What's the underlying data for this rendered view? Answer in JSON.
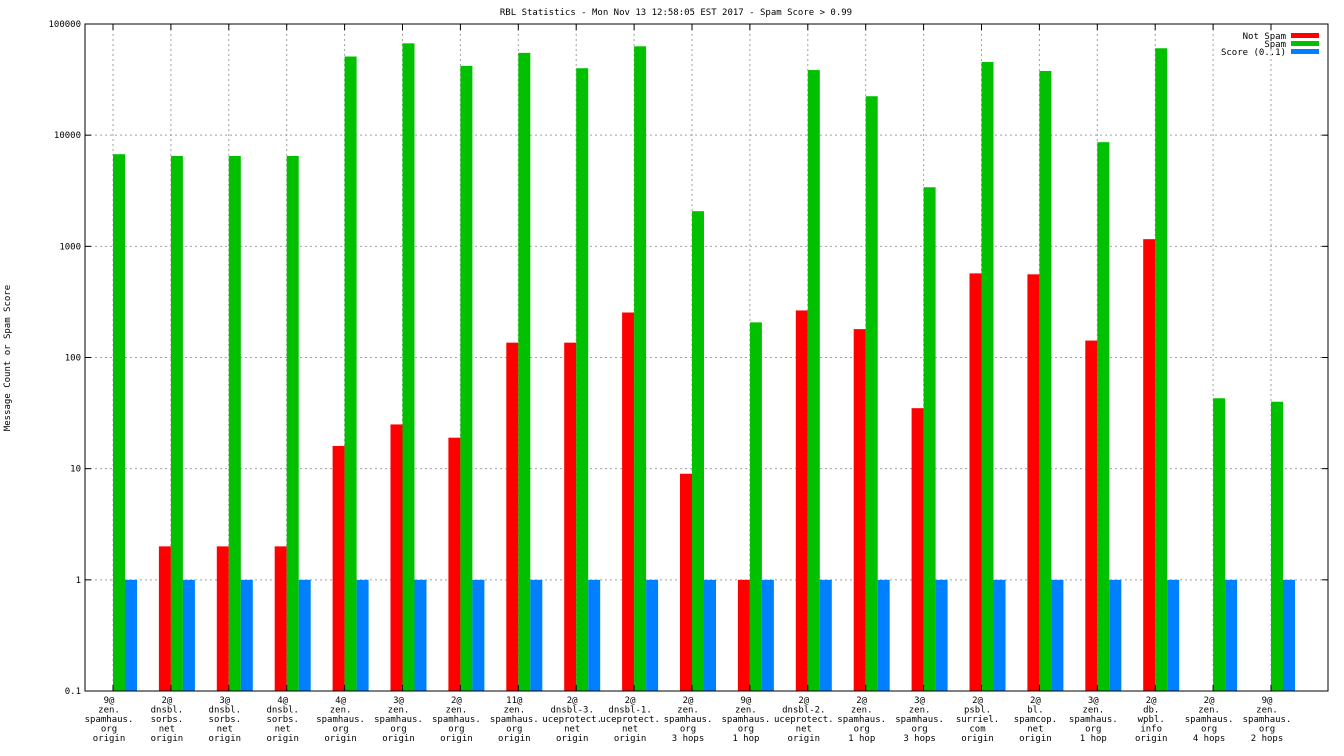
{
  "chart_data": {
    "type": "bar",
    "title": "RBL Statistics - Mon Nov 13 12:58:05 EST 2017 - Spam Score > 0.99",
    "xlabel": "",
    "ylabel": "Message Count or Spam Score",
    "yscale": "log",
    "ylim": [
      0.1,
      100000
    ],
    "yticks": [
      "0.1",
      "1",
      "10",
      "100",
      "1000",
      "10000",
      "100000"
    ],
    "grid": true,
    "legend_position": "top-right",
    "categories": [
      [
        "9@",
        "zen.",
        "spamhaus.",
        "org",
        "origin"
      ],
      [
        "2@",
        "dnsbl.",
        "sorbs.",
        "net",
        "origin"
      ],
      [
        "3@",
        "dnsbl.",
        "sorbs.",
        "net",
        "origin"
      ],
      [
        "4@",
        "dnsbl.",
        "sorbs.",
        "net",
        "origin"
      ],
      [
        "4@",
        "zen.",
        "spamhaus.",
        "org",
        "origin"
      ],
      [
        "3@",
        "zen.",
        "spamhaus.",
        "org",
        "origin"
      ],
      [
        "2@",
        "zen.",
        "spamhaus.",
        "org",
        "origin"
      ],
      [
        "11@",
        "zen.",
        "spamhaus.",
        "org",
        "origin"
      ],
      [
        "2@",
        "dnsbl-3.",
        "uceprotect.",
        "net",
        "origin"
      ],
      [
        "2@",
        "dnsbl-1.",
        "uceprotect.",
        "net",
        "origin"
      ],
      [
        "2@",
        "zen.",
        "spamhaus.",
        "org",
        "3 hops"
      ],
      [
        "9@",
        "zen.",
        "spamhaus.",
        "org",
        "1 hop"
      ],
      [
        "2@",
        "dnsbl-2.",
        "uceprotect.",
        "net",
        "origin"
      ],
      [
        "2@",
        "zen.",
        "spamhaus.",
        "org",
        "1 hop"
      ],
      [
        "3@",
        "zen.",
        "spamhaus.",
        "org",
        "3 hops"
      ],
      [
        "2@",
        "psbl.",
        "surriel.",
        "com",
        "origin"
      ],
      [
        "2@",
        "bl.",
        "spamcop.",
        "net",
        "origin"
      ],
      [
        "3@",
        "zen.",
        "spamhaus.",
        "org",
        "1 hop"
      ],
      [
        "2@",
        "db.",
        "wpbl.",
        "info",
        "origin"
      ],
      [
        "2@",
        "zen.",
        "spamhaus.",
        "org",
        "4 hops"
      ],
      [
        "9@",
        "zen.",
        "spamhaus.",
        "org",
        "2 hops"
      ]
    ],
    "series": [
      {
        "name": "Not Spam",
        "color": "#ff0000",
        "values": [
          0,
          2,
          2,
          2,
          16,
          25,
          19,
          136,
          136,
          254,
          9,
          1,
          265,
          180,
          35,
          571,
          560,
          142,
          1160,
          0,
          0
        ]
      },
      {
        "name": "Spam",
        "color": "#00c000",
        "values": [
          6740,
          6500,
          6500,
          6500,
          51000,
          67000,
          42000,
          55000,
          40000,
          63000,
          2070,
          207,
          38500,
          22400,
          3400,
          45500,
          37800,
          8650,
          60500,
          43,
          40
        ]
      },
      {
        "name": "Score (0..1)",
        "color": "#0080ff",
        "values": [
          1,
          1,
          1,
          1,
          1,
          1,
          1,
          1,
          1,
          1,
          1,
          1,
          1,
          1,
          1,
          1,
          1,
          1,
          1,
          1,
          1
        ]
      }
    ]
  }
}
